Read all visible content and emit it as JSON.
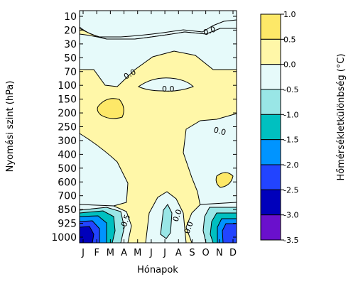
{
  "chart_data": {
    "type": "heatmap",
    "xlabel": "Hónapok",
    "ylabel": "Nyomási szint (hPa)",
    "colorbar_label": "Hőmérsékletkülönbség (°C)",
    "x_ticks": [
      "J",
      "F",
      "M",
      "A",
      "M",
      "J",
      "J",
      "A",
      "S",
      "O",
      "N",
      "D"
    ],
    "y_ticks": [
      "10",
      "20",
      "30",
      "50",
      "70",
      "100",
      "150",
      "200",
      "250",
      "300",
      "400",
      "500",
      "600",
      "700",
      "850",
      "925",
      "1000"
    ],
    "contour_labels": [
      "0.0",
      "0.0",
      "0.0",
      "0.0",
      "0.0",
      "-0.5",
      "0.0"
    ],
    "colorbar": {
      "ticks": [
        "1.0",
        "0.5",
        "0.0",
        "-0.5",
        "-1.0",
        "-1.5",
        "-2.0",
        "-2.5",
        "-3.0",
        "-3.5"
      ],
      "values": [
        1.0,
        0.5,
        0.0,
        -0.5,
        -1.0,
        -1.5,
        -2.0,
        -2.5,
        -3.0,
        -3.5
      ],
      "bands": [
        {
          "from": 0.5,
          "to": 1.0,
          "color": "#fde868"
        },
        {
          "from": 0.0,
          "to": 0.5,
          "color": "#fff7a8"
        },
        {
          "from": -0.5,
          "to": 0.0,
          "color": "#e6fafa"
        },
        {
          "from": -1.0,
          "to": -0.5,
          "color": "#99e6e6"
        },
        {
          "from": -1.5,
          "to": -1.0,
          "color": "#00c0c0"
        },
        {
          "from": -2.0,
          "to": -1.5,
          "color": "#0094ff"
        },
        {
          "from": -2.5,
          "to": -2.0,
          "color": "#2244ff"
        },
        {
          "from": -3.0,
          "to": -2.5,
          "color": "#0000bb"
        },
        {
          "from": -3.5,
          "to": -3.0,
          "color": "#6a10cc"
        }
      ]
    },
    "grid": false,
    "legend_position": "right"
  }
}
